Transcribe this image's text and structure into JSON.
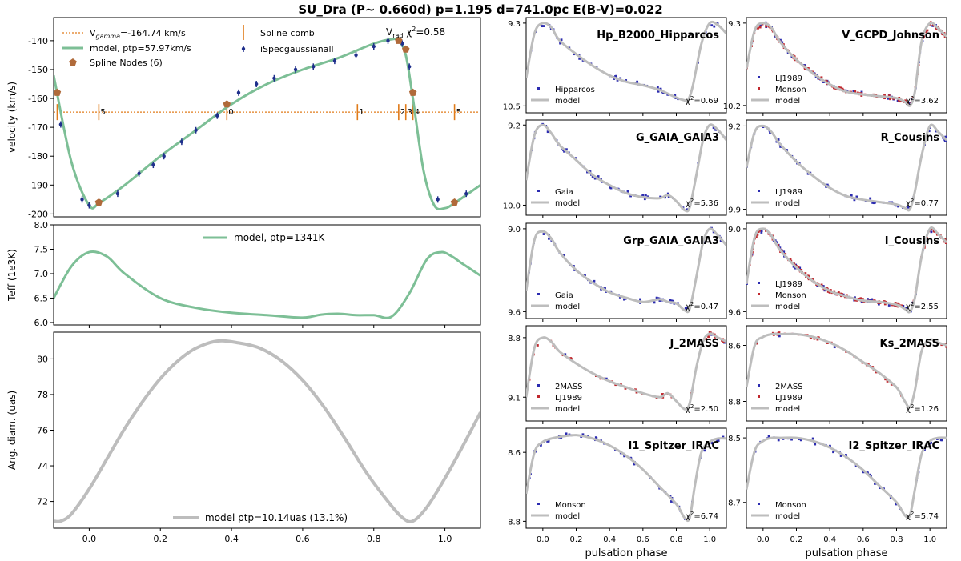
{
  "suptitle": "SU_Dra (P~ 0.660d) p=1.195 d=741.0pc E(B-V)=0.022",
  "colors": {
    "model_green": "#7dbf96",
    "model_grey": "#bdbdbd",
    "spec_blue": "#1f2f8c",
    "node_brown": "#b06a3a",
    "comb_orange": "#e07b1a",
    "phot_blue": "#2b2bb0",
    "phot_red": "#c0272d",
    "band_title": "#6a9bd1"
  },
  "chart_data": [
    {
      "id": "velocity",
      "type": "line",
      "ylabel": "velocity (km/s)",
      "ylim": [
        -201,
        -132
      ],
      "xlim": [
        -0.1,
        1.1
      ],
      "yticks": [
        "-140",
        "-150",
        "-160",
        "-170",
        "-180",
        "-190",
        "-200"
      ],
      "ytick_values": [
        -140,
        -150,
        -160,
        -170,
        -180,
        -190,
        -200
      ],
      "xticks": [],
      "xtick_values": [],
      "legend": [
        "V$_{gamma}$=-164.74 km/s",
        "model, ptp=57.97km/s",
        "Spline Nodes (6)",
        "Spline comb",
        "iSpecgaussianall"
      ],
      "legend_labels": {
        "vgamma": "V",
        "vgamma_sub": "gamma",
        "vgamma_rest": "=-164.74 km/s",
        "model": "model, ptp=57.97km/s",
        "nodes": "Spline Nodes (6)",
        "comb": "Spline comb",
        "data": "iSpecgaussianall"
      },
      "annotation": {
        "v": "V",
        "sub": "rad",
        "chi": " χ",
        "sup": "2",
        "val": "=0.58"
      },
      "vgamma": -164.74,
      "model": {
        "x": [
          -0.1,
          -0.05,
          0.0,
          0.03,
          0.1,
          0.2,
          0.3,
          0.4,
          0.5,
          0.6,
          0.7,
          0.8,
          0.85,
          0.87,
          0.89,
          0.91,
          0.94,
          0.97,
          1.0,
          1.03,
          1.1
        ],
        "y": [
          -152,
          -182,
          -197,
          -196,
          -190,
          -180,
          -171,
          -162,
          -155,
          -150,
          -146,
          -141,
          -139.5,
          -140,
          -145,
          -160,
          -185,
          -197,
          -198,
          -196,
          -190
        ]
      },
      "nodes": {
        "x": [
          -0.09,
          0.027,
          0.387,
          0.87,
          0.89,
          0.91,
          1.027
        ],
        "y": [
          -158,
          -196,
          -162,
          -140,
          -143,
          -158,
          -196
        ]
      },
      "comb": {
        "x": [
          -0.09,
          0.027,
          0.387,
          0.754,
          0.87,
          0.89,
          0.91,
          1.027
        ],
        "labels": [
          "",
          "5",
          "0",
          "1",
          "2",
          "3",
          "4",
          "5"
        ]
      },
      "data": {
        "x": [
          -0.08,
          -0.02,
          0.0,
          0.03,
          0.08,
          0.14,
          0.18,
          0.21,
          0.26,
          0.3,
          0.36,
          0.42,
          0.47,
          0.52,
          0.58,
          0.63,
          0.69,
          0.75,
          0.8,
          0.84,
          0.88,
          0.9,
          0.98,
          1.03,
          1.06
        ],
        "y": [
          -169,
          -195,
          -197,
          -196,
          -193,
          -186,
          -183,
          -180,
          -175,
          -171,
          -166,
          -158,
          -155,
          -153,
          -150,
          -149,
          -147,
          -145,
          -142,
          -140,
          -141,
          -149,
          -195,
          -196,
          -193
        ]
      }
    },
    {
      "id": "teff",
      "type": "line",
      "ylabel": "Teff (1e3K)",
      "ylim": [
        5.95,
        8.0
      ],
      "xlim": [
        -0.1,
        1.1
      ],
      "yticks": [
        "8.0",
        "7.5",
        "7.0",
        "6.5",
        "6.0"
      ],
      "ytick_values": [
        8.0,
        7.5,
        7.0,
        6.5,
        6.0
      ],
      "legend": [
        "model, ptp=1341K"
      ],
      "model": {
        "x": [
          -0.1,
          -0.05,
          0.0,
          0.05,
          0.1,
          0.2,
          0.3,
          0.4,
          0.5,
          0.6,
          0.65,
          0.7,
          0.75,
          0.8,
          0.85,
          0.9,
          0.95,
          0.99,
          1.02,
          1.05,
          1.1
        ],
        "y": [
          6.5,
          7.15,
          7.44,
          7.35,
          7.0,
          6.5,
          6.3,
          6.2,
          6.15,
          6.1,
          6.16,
          6.18,
          6.15,
          6.15,
          6.12,
          6.6,
          7.3,
          7.44,
          7.35,
          7.2,
          6.96
        ]
      }
    },
    {
      "id": "angdiam",
      "type": "line",
      "ylabel": "Ang. diam. (uas)",
      "ylim": [
        70.5,
        81.5
      ],
      "xlim": [
        -0.1,
        1.1
      ],
      "yticks": [
        "80",
        "78",
        "76",
        "74",
        "72"
      ],
      "ytick_values": [
        80,
        78,
        76,
        74,
        72
      ],
      "xticks": [
        "0.0",
        "0.2",
        "0.4",
        "0.6",
        "0.8",
        "1.0"
      ],
      "xtick_values": [
        0.0,
        0.2,
        0.4,
        0.6,
        0.8,
        1.0
      ],
      "legend": [
        "model ptp=10.14uas (13.1%)"
      ],
      "model": {
        "x": [
          -0.1,
          -0.08,
          -0.05,
          0.0,
          0.05,
          0.1,
          0.15,
          0.2,
          0.25,
          0.3,
          0.36,
          0.42,
          0.48,
          0.54,
          0.6,
          0.66,
          0.72,
          0.78,
          0.84,
          0.88,
          0.91,
          0.95,
          1.0,
          1.05,
          1.1
        ],
        "y": [
          70.9,
          70.9,
          71.3,
          72.7,
          74.4,
          76.1,
          77.6,
          78.9,
          79.9,
          80.6,
          81.0,
          80.9,
          80.6,
          79.9,
          78.8,
          77.3,
          75.5,
          73.6,
          72.0,
          71.1,
          70.9,
          71.7,
          73.3,
          75.1,
          77.0
        ]
      }
    },
    {
      "id": "hp",
      "type": "scatter",
      "band": "Hp_B2000_Hipparcos",
      "ylim": [
        10.6,
        9.22
      ],
      "yticks": [
        "9.3",
        "10.5"
      ],
      "ytick_values": [
        9.3,
        10.5
      ],
      "chi": "=0.69",
      "legend": [
        "Hipparcos",
        "model"
      ],
      "series_colors": [
        "blue"
      ],
      "model": {
        "x": [
          -0.1,
          -0.05,
          0.0,
          0.05,
          0.1,
          0.2,
          0.3,
          0.4,
          0.5,
          0.6,
          0.7,
          0.8,
          0.85,
          0.87,
          0.9,
          0.95,
          1.0,
          1.05,
          1.1
        ],
        "y": [
          10.1,
          9.45,
          9.3,
          9.36,
          9.55,
          9.75,
          9.92,
          10.06,
          10.15,
          10.2,
          10.27,
          10.38,
          10.42,
          10.42,
          10.2,
          9.6,
          9.3,
          9.33,
          9.45
        ]
      }
    },
    {
      "id": "v",
      "type": "scatter",
      "band": "V_GCPD_Johnson",
      "ylim": [
        10.28,
        9.24
      ],
      "yticks": [
        "9.3",
        "10.2"
      ],
      "ytick_values": [
        9.3,
        10.2
      ],
      "chi": "=3.62",
      "legend": [
        "LJ1989",
        "Monson"
      ],
      "legend_extra": "model",
      "series_colors": [
        "blue",
        "red"
      ],
      "model": {
        "x": [
          -0.1,
          -0.05,
          0.0,
          0.05,
          0.1,
          0.2,
          0.3,
          0.4,
          0.5,
          0.6,
          0.7,
          0.8,
          0.85,
          0.88,
          0.91,
          0.95,
          1.0,
          1.05,
          1.1
        ],
        "y": [
          9.8,
          9.38,
          9.3,
          9.35,
          9.5,
          9.7,
          9.85,
          9.97,
          10.05,
          10.08,
          10.1,
          10.12,
          10.16,
          10.2,
          10.05,
          9.5,
          9.3,
          9.36,
          9.45
        ]
      }
    },
    {
      "id": "g",
      "type": "scatter",
      "band": "G_GAIA_GAIA3",
      "ylim": [
        10.1,
        9.15
      ],
      "yticks": [
        "9.2",
        "10.0"
      ],
      "ytick_values": [
        9.2,
        10.0
      ],
      "chi": "=5.36",
      "legend": [
        "Gaia",
        "model"
      ],
      "series_colors": [
        "blue"
      ],
      "model": {
        "x": [
          -0.1,
          -0.05,
          0.0,
          0.05,
          0.1,
          0.2,
          0.3,
          0.4,
          0.5,
          0.6,
          0.7,
          0.75,
          0.8,
          0.85,
          0.88,
          0.92,
          0.96,
          1.0,
          1.05,
          1.1
        ],
        "y": [
          9.75,
          9.3,
          9.2,
          9.28,
          9.4,
          9.55,
          9.7,
          9.8,
          9.88,
          9.92,
          9.93,
          9.9,
          9.96,
          10.05,
          10.02,
          9.7,
          9.35,
          9.2,
          9.25,
          9.35
        ]
      }
    },
    {
      "id": "r",
      "type": "scatter",
      "band": "R_Cousins",
      "ylim": [
        9.95,
        9.15
      ],
      "yticks": [
        "9.2",
        "9.9"
      ],
      "ytick_values": [
        9.2,
        9.9
      ],
      "chi": "=0.77",
      "legend": [
        "LJ1989",
        "model"
      ],
      "series_colors": [
        "blue"
      ],
      "model": {
        "x": [
          -0.1,
          -0.05,
          0.0,
          0.05,
          0.1,
          0.2,
          0.3,
          0.4,
          0.5,
          0.6,
          0.7,
          0.8,
          0.85,
          0.88,
          0.91,
          0.95,
          1.0,
          1.05,
          1.1
        ],
        "y": [
          9.55,
          9.25,
          9.2,
          9.25,
          9.35,
          9.5,
          9.62,
          9.72,
          9.79,
          9.82,
          9.84,
          9.86,
          9.89,
          9.9,
          9.75,
          9.45,
          9.2,
          9.25,
          9.32
        ]
      }
    },
    {
      "id": "grp",
      "type": "scatter",
      "band": "Grp_GAIA_GAIA3",
      "ylim": [
        9.65,
        8.96
      ],
      "yticks": [
        "9.0",
        "9.6"
      ],
      "ytick_values": [
        9.0,
        9.6
      ],
      "chi": "=0.47",
      "legend": [
        "Gaia",
        "model"
      ],
      "series_colors": [
        "blue"
      ],
      "model": {
        "x": [
          -0.1,
          -0.05,
          0.0,
          0.05,
          0.1,
          0.2,
          0.3,
          0.4,
          0.5,
          0.6,
          0.7,
          0.75,
          0.8,
          0.85,
          0.88,
          0.92,
          0.96,
          1.0,
          1.05,
          1.1
        ],
        "y": [
          9.45,
          9.08,
          9.02,
          9.07,
          9.17,
          9.3,
          9.39,
          9.46,
          9.5,
          9.53,
          9.51,
          9.53,
          9.54,
          9.59,
          9.58,
          9.35,
          9.1,
          9.0,
          9.05,
          9.12
        ]
      }
    },
    {
      "id": "i",
      "type": "scatter",
      "band": "I_Cousins",
      "ylim": [
        9.65,
        8.96
      ],
      "yticks": [
        "9.0",
        "9.6"
      ],
      "ytick_values": [
        9.0,
        9.6
      ],
      "chi": "=2.55",
      "legend": [
        "LJ1989",
        "Monson"
      ],
      "legend_extra": "model",
      "series_colors": [
        "blue",
        "red"
      ],
      "model": {
        "x": [
          -0.1,
          -0.05,
          0.0,
          0.05,
          0.1,
          0.2,
          0.3,
          0.4,
          0.5,
          0.6,
          0.7,
          0.8,
          0.85,
          0.88,
          0.91,
          0.95,
          1.0,
          1.05,
          1.1
        ],
        "y": [
          9.4,
          9.06,
          9.0,
          9.05,
          9.15,
          9.28,
          9.38,
          9.45,
          9.49,
          9.52,
          9.53,
          9.55,
          9.58,
          9.6,
          9.5,
          9.2,
          9.0,
          9.04,
          9.1
        ]
      }
    },
    {
      "id": "j",
      "type": "scatter",
      "band": "J_2MASS",
      "ylim": [
        9.22,
        8.74
      ],
      "yticks": [
        "8.8",
        "9.1"
      ],
      "ytick_values": [
        8.8,
        9.1
      ],
      "chi": "=2.50",
      "legend": [
        "2MASS",
        "LJ1989"
      ],
      "legend_extra": "model",
      "series_colors": [
        "blue",
        "red"
      ],
      "model": {
        "x": [
          -0.1,
          -0.05,
          0.0,
          0.05,
          0.1,
          0.2,
          0.3,
          0.4,
          0.5,
          0.6,
          0.7,
          0.75,
          0.8,
          0.85,
          0.88,
          0.92,
          0.96,
          1.0,
          1.05,
          1.1
        ],
        "y": [
          9.1,
          8.85,
          8.8,
          8.82,
          8.87,
          8.93,
          8.98,
          9.02,
          9.05,
          9.08,
          9.1,
          9.08,
          9.12,
          9.16,
          9.13,
          8.95,
          8.82,
          8.78,
          8.8,
          8.82
        ]
      }
    },
    {
      "id": "ks",
      "type": "scatter",
      "band": "Ks_2MASS",
      "ylim": [
        8.87,
        8.53
      ],
      "yticks": [
        "8.6",
        "8.8"
      ],
      "ytick_values": [
        8.6,
        8.8
      ],
      "chi": "=1.26",
      "legend": [
        "2MASS",
        "LJ1989"
      ],
      "legend_extra": "model",
      "series_colors": [
        "blue",
        "red"
      ],
      "model": {
        "x": [
          -0.1,
          -0.05,
          0.0,
          0.05,
          0.1,
          0.2,
          0.3,
          0.4,
          0.5,
          0.6,
          0.7,
          0.8,
          0.85,
          0.88,
          0.91,
          0.95,
          1.0,
          1.05,
          1.1
        ],
        "y": [
          8.75,
          8.6,
          8.57,
          8.56,
          8.56,
          8.56,
          8.57,
          8.59,
          8.62,
          8.66,
          8.7,
          8.75,
          8.8,
          8.82,
          8.76,
          8.62,
          8.58,
          8.59,
          8.6
        ]
      }
    },
    {
      "id": "i1",
      "type": "scatter",
      "band": "I1_Spitzer_IRAC",
      "ylim": [
        8.82,
        8.53
      ],
      "yticks": [
        "8.6",
        "8.8"
      ],
      "ytick_values": [
        8.6,
        8.8
      ],
      "chi": "=6.74",
      "legend": [
        "Monson",
        "model"
      ],
      "series_colors": [
        "blue"
      ],
      "xticks": [
        "0.0",
        "0.2",
        "0.4",
        "0.6",
        "0.8",
        "1.0"
      ],
      "xtick_values": [
        0.0,
        0.2,
        0.4,
        0.6,
        0.8,
        1.0
      ],
      "xlabel": "pulsation phase",
      "model": {
        "x": [
          -0.1,
          -0.05,
          0.0,
          0.05,
          0.1,
          0.2,
          0.3,
          0.4,
          0.5,
          0.6,
          0.7,
          0.8,
          0.85,
          0.88,
          0.91,
          0.95,
          1.0,
          1.05,
          1.1
        ],
        "y": [
          8.72,
          8.6,
          8.57,
          8.56,
          8.555,
          8.55,
          8.56,
          8.58,
          8.61,
          8.65,
          8.7,
          8.75,
          8.79,
          8.79,
          8.7,
          8.6,
          8.57,
          8.56,
          8.56
        ]
      }
    },
    {
      "id": "i2",
      "type": "scatter",
      "band": "I2_Spitzer_IRAC",
      "ylim": [
        8.78,
        8.47
      ],
      "yticks": [
        "8.5",
        "8.7"
      ],
      "ytick_values": [
        8.5,
        8.7
      ],
      "chi": "=5.74",
      "legend": [
        "Monson",
        "model"
      ],
      "series_colors": [
        "blue"
      ],
      "xticks": [
        "0.0",
        "0.2",
        "0.4",
        "0.6",
        "0.8",
        "1.0"
      ],
      "xtick_values": [
        0.0,
        0.2,
        0.4,
        0.6,
        0.8,
        1.0
      ],
      "xlabel": "pulsation phase",
      "model": {
        "x": [
          -0.1,
          -0.05,
          0.0,
          0.05,
          0.1,
          0.2,
          0.3,
          0.4,
          0.5,
          0.6,
          0.7,
          0.8,
          0.85,
          0.88,
          0.91,
          0.95,
          1.0,
          1.05,
          1.1
        ],
        "y": [
          8.66,
          8.54,
          8.51,
          8.5,
          8.5,
          8.5,
          8.51,
          8.53,
          8.56,
          8.6,
          8.65,
          8.7,
          8.74,
          8.74,
          8.66,
          8.55,
          8.51,
          8.5,
          8.5
        ]
      }
    }
  ]
}
